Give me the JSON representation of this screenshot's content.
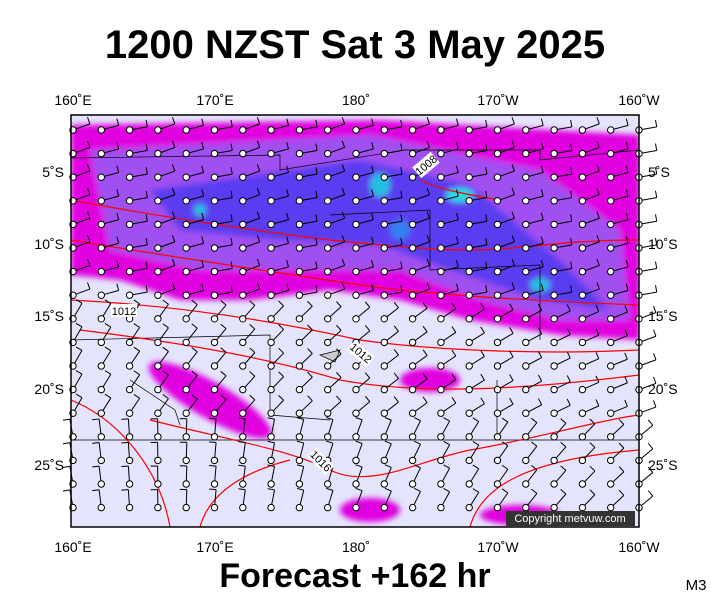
{
  "header": {
    "title": "1200 NZST Sat 3 May 2025"
  },
  "map": {
    "top_labels": [
      "160˚E",
      "170˚E",
      "180˚",
      "170˚W",
      "160˚W"
    ],
    "bottom_labels": [
      "160˚E",
      "170˚E",
      "180˚",
      "170˚W",
      "160˚W"
    ],
    "left_labels": [
      "5˚S",
      "10˚S",
      "15˚S",
      "20˚S",
      "25˚S"
    ],
    "right_labels": [
      "5˚S",
      "10˚S",
      "15˚S",
      "20˚S",
      "25˚S"
    ],
    "isobar_labels": [
      "1008",
      "1012",
      "1012",
      "1016"
    ],
    "copyright": "Copyright metvuw.com"
  },
  "footer": {
    "forecast": "Forecast +162 hr",
    "code": "M3"
  }
}
